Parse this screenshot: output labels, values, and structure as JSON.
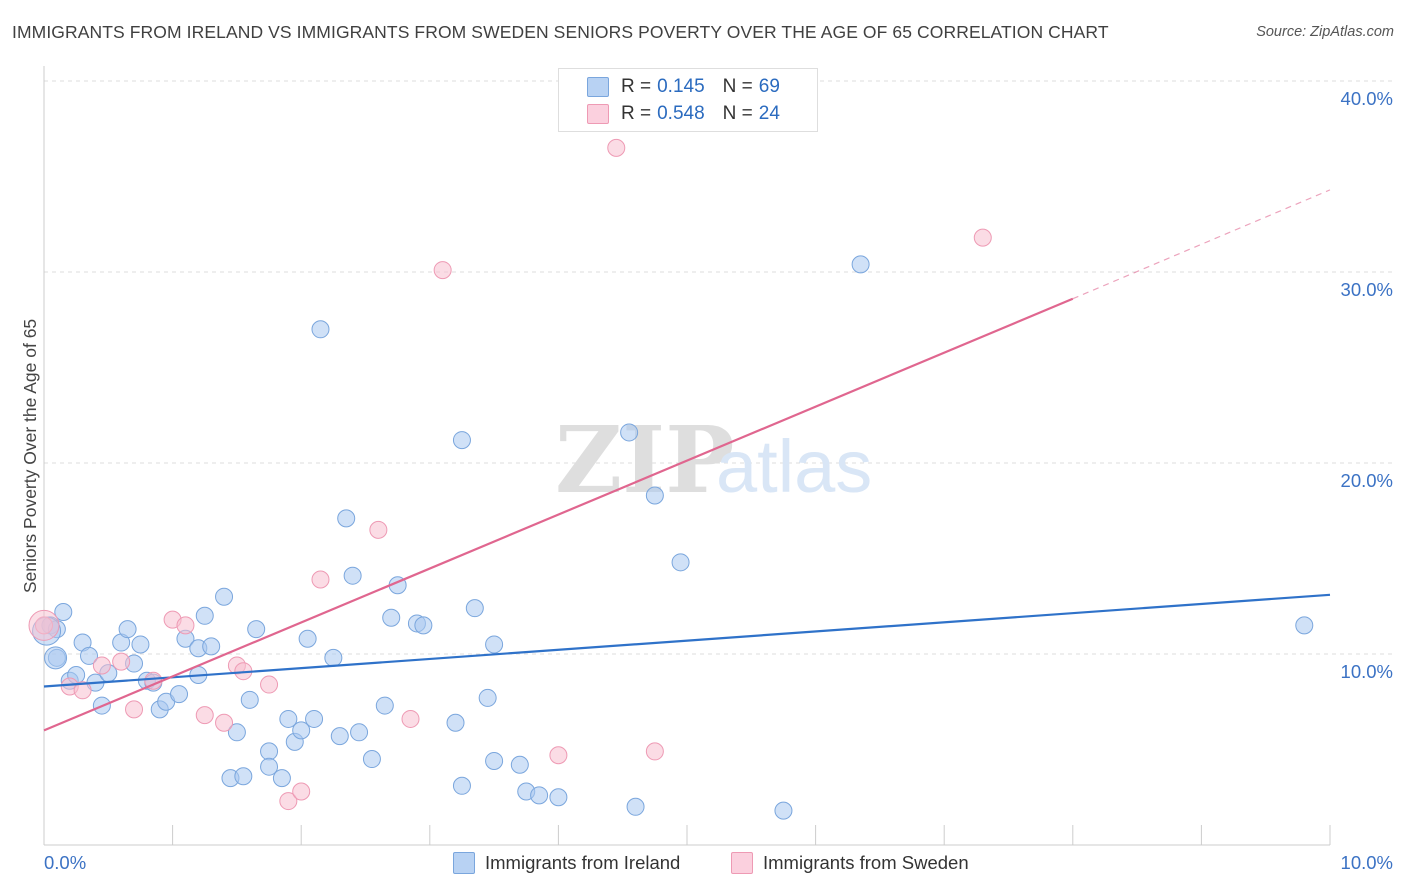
{
  "title": "IMMIGRANTS FROM IRELAND VS IMMIGRANTS FROM SWEDEN SENIORS POVERTY OVER THE AGE OF 65 CORRELATION CHART",
  "source": "Source: ZipAtlas.com",
  "watermark": {
    "zip": "ZIP",
    "atlas": "atlas"
  },
  "legend": {
    "rows": [
      {
        "r_label": "R =",
        "r_value": "0.145",
        "n_label": "N =",
        "n_value": "69"
      },
      {
        "r_label": "R =",
        "r_value": "0.548",
        "n_label": "N =",
        "n_value": "24"
      }
    ]
  },
  "bottom_legend": [
    "Immigrants from Ireland",
    "Immigrants from Sweden"
  ],
  "colors": {
    "ireland_fill": "#a9c8f0",
    "ireland_stroke": "#7aa6dd",
    "ireland_line": "#2f72c9",
    "sweden_fill": "#f7bfd0",
    "sweden_stroke": "#ee9ab4",
    "sweden_line": "#e0668f",
    "axis_text": "#3b72c4",
    "grid": "#dddddd"
  },
  "chart_data": {
    "type": "scatter",
    "title": "IMMIGRANTS FROM IRELAND VS IMMIGRANTS FROM SWEDEN SENIORS POVERTY OVER THE AGE OF 65 CORRELATION CHART",
    "xlabel": "",
    "ylabel": "Seniors Poverty Over the Age of 65",
    "xlim": [
      0,
      10
    ],
    "ylim": [
      0,
      40
    ],
    "x_tick_labels": [
      "0.0%",
      "10.0%"
    ],
    "y_ticks": [
      10,
      20,
      30,
      40
    ],
    "y_tick_labels": [
      "10.0%",
      "20.0%",
      "30.0%",
      "40.0%"
    ],
    "grid": true,
    "legend_position": "top-center",
    "series": [
      {
        "name": "Immigrants from Ireland",
        "r": 0.145,
        "n": 69,
        "trend": {
          "x": [
            0,
            10
          ],
          "y": [
            8.3,
            13.1
          ]
        },
        "points": [
          [
            0.05,
            11.5
          ],
          [
            0.1,
            9.8
          ],
          [
            0.15,
            12.2
          ],
          [
            0.2,
            8.6
          ],
          [
            0.25,
            8.9
          ],
          [
            0.3,
            10.6
          ],
          [
            0.35,
            9.9
          ],
          [
            0.4,
            8.5
          ],
          [
            0.45,
            7.3
          ],
          [
            0.5,
            9.0
          ],
          [
            0.6,
            10.6
          ],
          [
            0.65,
            11.3
          ],
          [
            0.7,
            9.5
          ],
          [
            0.75,
            10.5
          ],
          [
            0.8,
            8.6
          ],
          [
            0.85,
            8.5
          ],
          [
            0.9,
            7.1
          ],
          [
            0.95,
            7.5
          ],
          [
            1.05,
            7.9
          ],
          [
            1.1,
            10.8
          ],
          [
            1.2,
            8.9
          ],
          [
            1.2,
            10.3
          ],
          [
            1.25,
            12.0
          ],
          [
            1.3,
            10.4
          ],
          [
            1.4,
            13.0
          ],
          [
            1.5,
            5.9
          ],
          [
            1.45,
            3.5
          ],
          [
            1.55,
            3.6
          ],
          [
            1.6,
            7.6
          ],
          [
            1.65,
            11.3
          ],
          [
            1.75,
            4.9
          ],
          [
            1.75,
            4.1
          ],
          [
            1.85,
            3.5
          ],
          [
            1.9,
            6.6
          ],
          [
            1.95,
            5.4
          ],
          [
            2.0,
            6.0
          ],
          [
            2.05,
            10.8
          ],
          [
            2.1,
            6.6
          ],
          [
            2.15,
            27.0
          ],
          [
            2.25,
            9.8
          ],
          [
            2.3,
            5.7
          ],
          [
            2.35,
            17.1
          ],
          [
            2.4,
            14.1
          ],
          [
            2.45,
            5.9
          ],
          [
            2.55,
            4.5
          ],
          [
            2.65,
            7.3
          ],
          [
            2.7,
            11.9
          ],
          [
            2.75,
            13.6
          ],
          [
            2.9,
            11.6
          ],
          [
            2.95,
            11.5
          ],
          [
            3.2,
            6.4
          ],
          [
            3.25,
            3.1
          ],
          [
            3.25,
            21.2
          ],
          [
            3.35,
            12.4
          ],
          [
            3.45,
            7.7
          ],
          [
            3.5,
            4.4
          ],
          [
            3.5,
            10.5
          ],
          [
            3.7,
            4.2
          ],
          [
            3.75,
            2.8
          ],
          [
            3.85,
            2.6
          ],
          [
            4.0,
            2.5
          ],
          [
            4.55,
            21.6
          ],
          [
            4.6,
            2.0
          ],
          [
            4.75,
            18.3
          ],
          [
            4.95,
            14.8
          ],
          [
            5.75,
            1.8
          ],
          [
            6.35,
            30.4
          ],
          [
            9.8,
            11.5
          ],
          [
            0.1,
            11.3
          ]
        ]
      },
      {
        "name": "Immigrants from Sweden",
        "r": 0.548,
        "n": 24,
        "trend": {
          "x": [
            0,
            8
          ],
          "y": [
            6.0,
            28.6
          ]
        },
        "trend_dashed": {
          "x": [
            8,
            10
          ],
          "y": [
            28.6,
            34.3
          ]
        },
        "points": [
          [
            0.0,
            11.5
          ],
          [
            0.2,
            8.3
          ],
          [
            0.3,
            8.1
          ],
          [
            0.45,
            9.4
          ],
          [
            0.6,
            9.6
          ],
          [
            0.7,
            7.1
          ],
          [
            0.85,
            8.6
          ],
          [
            1.0,
            11.8
          ],
          [
            1.1,
            11.5
          ],
          [
            1.25,
            6.8
          ],
          [
            1.4,
            6.4
          ],
          [
            1.5,
            9.4
          ],
          [
            1.55,
            9.1
          ],
          [
            1.75,
            8.4
          ],
          [
            1.9,
            2.3
          ],
          [
            2.0,
            2.8
          ],
          [
            2.15,
            13.9
          ],
          [
            2.6,
            16.5
          ],
          [
            2.85,
            6.6
          ],
          [
            3.1,
            30.1
          ],
          [
            4.0,
            4.7
          ],
          [
            4.45,
            36.5
          ],
          [
            4.75,
            4.9
          ],
          [
            7.3,
            31.8
          ]
        ]
      }
    ]
  }
}
